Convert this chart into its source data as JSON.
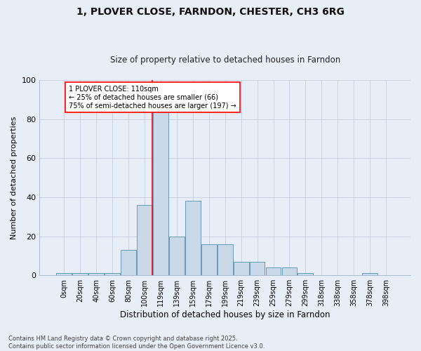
{
  "title": "1, PLOVER CLOSE, FARNDON, CHESTER, CH3 6RG",
  "subtitle": "Size of property relative to detached houses in Farndon",
  "xlabel": "Distribution of detached houses by size in Farndon",
  "ylabel": "Number of detached properties",
  "bin_labels": [
    "0sqm",
    "20sqm",
    "40sqm",
    "60sqm",
    "80sqm",
    "100sqm",
    "119sqm",
    "139sqm",
    "159sqm",
    "179sqm",
    "199sqm",
    "219sqm",
    "239sqm",
    "259sqm",
    "279sqm",
    "299sqm",
    "318sqm",
    "338sqm",
    "358sqm",
    "378sqm",
    "398sqm"
  ],
  "bar_heights": [
    1,
    1,
    1,
    1,
    13,
    36,
    85,
    20,
    38,
    16,
    16,
    7,
    7,
    4,
    4,
    1,
    0,
    0,
    0,
    1,
    0
  ],
  "bar_color": "#c9d9e8",
  "bar_edge_color": "#6699bb",
  "grid_color": "#c8d4e4",
  "bg_color": "#e8eef8",
  "annotation_text": "1 PLOVER CLOSE: 110sqm\n← 25% of detached houses are smaller (66)\n75% of semi-detached houses are larger (197) →",
  "red_line_bar_index": 5.5,
  "ylim": [
    0,
    100
  ],
  "yticks": [
    0,
    20,
    40,
    60,
    80,
    100
  ],
  "footnote": "Contains HM Land Registry data © Crown copyright and database right 2025.\nContains public sector information licensed under the Open Government Licence v3.0.",
  "fig_bg_color": "#e8eef8",
  "title_fontsize": 10,
  "subtitle_fontsize": 8.5
}
